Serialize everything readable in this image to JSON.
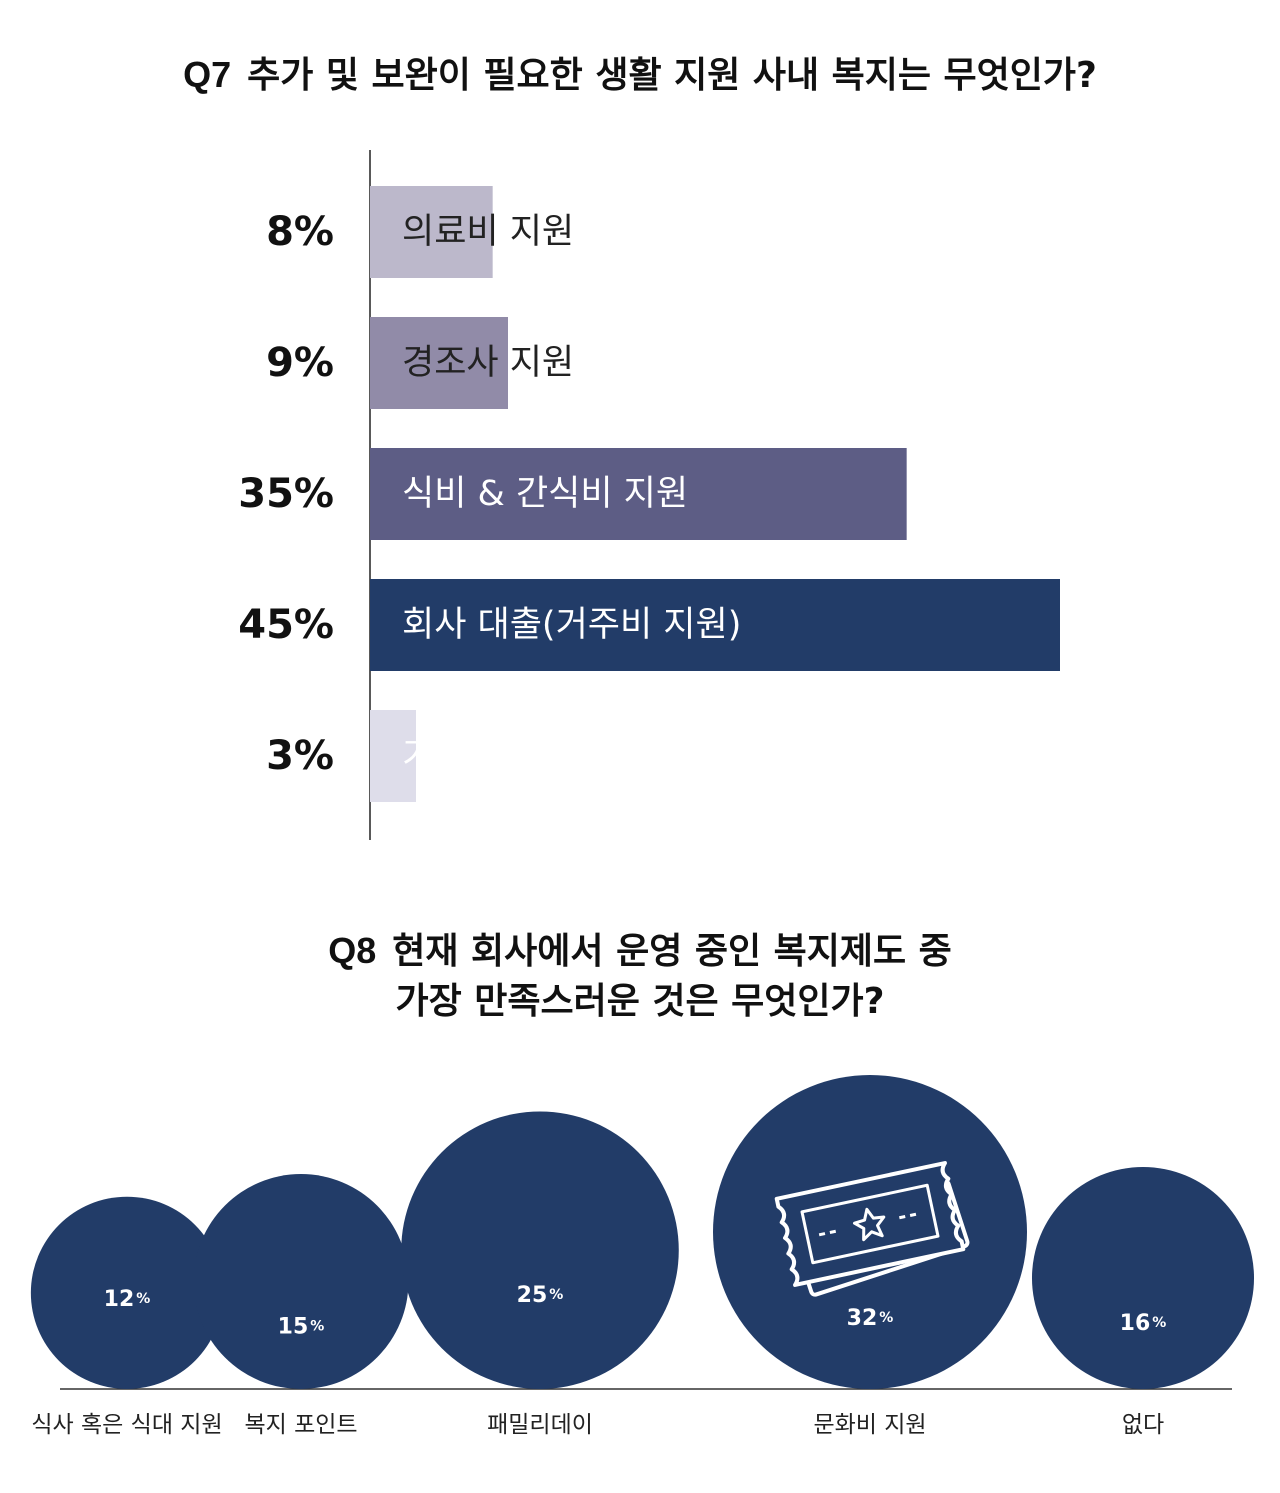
{
  "q7": {
    "qnum": "Q7",
    "title": "추가 및 보완이 필요한 생활 지원 사내 복지는 무엇인가?"
  },
  "q8": {
    "qnum": "Q8",
    "title_line1": "현재 회사에서 운영 중인 복지제도 중",
    "title_line2": "가장 만족스러운 것은 무엇인가?"
  },
  "chart_data": [
    {
      "type": "bar",
      "orientation": "horizontal",
      "categories": [
        "의료비 지원",
        "경조사 지원",
        "식비 & 간식비 지원",
        "회사 대출(거주비 지원)",
        "기타"
      ],
      "values": [
        8,
        9,
        35,
        45,
        3
      ],
      "value_labels": [
        "8%",
        "9%",
        "35%",
        "45%",
        "3%"
      ],
      "unit": "%",
      "xlim": [
        0,
        45
      ],
      "colors": [
        "#bcb8cb",
        "#918ba8",
        "#5d5d85",
        "#223c68",
        "#deddea"
      ]
    },
    {
      "type": "bubble",
      "categories": [
        "식사 혹은 식대 지원",
        "복지 포인트",
        "패밀리데이",
        "문화비 지원",
        "없다"
      ],
      "values": [
        12,
        15,
        25,
        32,
        16
      ],
      "unit": "%",
      "color": "#223c68",
      "icon": "ticket-icon",
      "icon_on": "문화비 지원"
    }
  ]
}
